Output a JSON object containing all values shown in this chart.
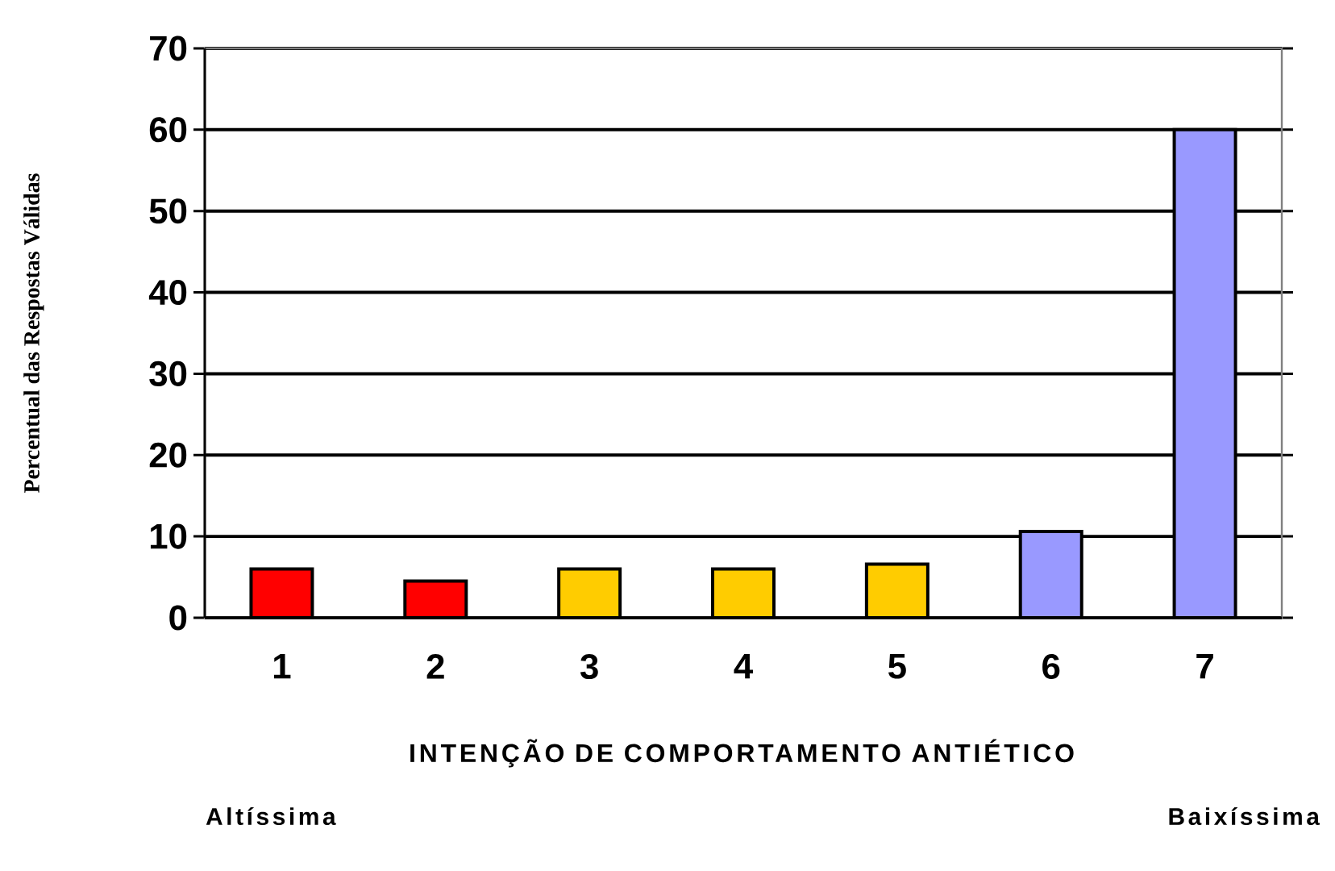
{
  "chart_data": {
    "type": "bar",
    "xlabel": "INTENÇÃO DE COMPORTAMENTO ANTIÉTICO",
    "ylabel": "Percentual das Respostas Válidas",
    "categories": [
      "1",
      "2",
      "3",
      "4",
      "5",
      "6",
      "7"
    ],
    "values": [
      6.0,
      4.5,
      6.0,
      6.0,
      6.6,
      10.6,
      60
    ],
    "colors": [
      "#ff0000",
      "#ff0000",
      "#ffcc00",
      "#ffcc00",
      "#ffcc00",
      "#9999ff",
      "#9999ff"
    ],
    "ylim": [
      0,
      70
    ],
    "yticks": [
      0,
      10,
      20,
      30,
      40,
      50,
      60,
      70
    ],
    "grid": "y",
    "annotations": [
      "Altíssima",
      "Baixíssima"
    ]
  }
}
